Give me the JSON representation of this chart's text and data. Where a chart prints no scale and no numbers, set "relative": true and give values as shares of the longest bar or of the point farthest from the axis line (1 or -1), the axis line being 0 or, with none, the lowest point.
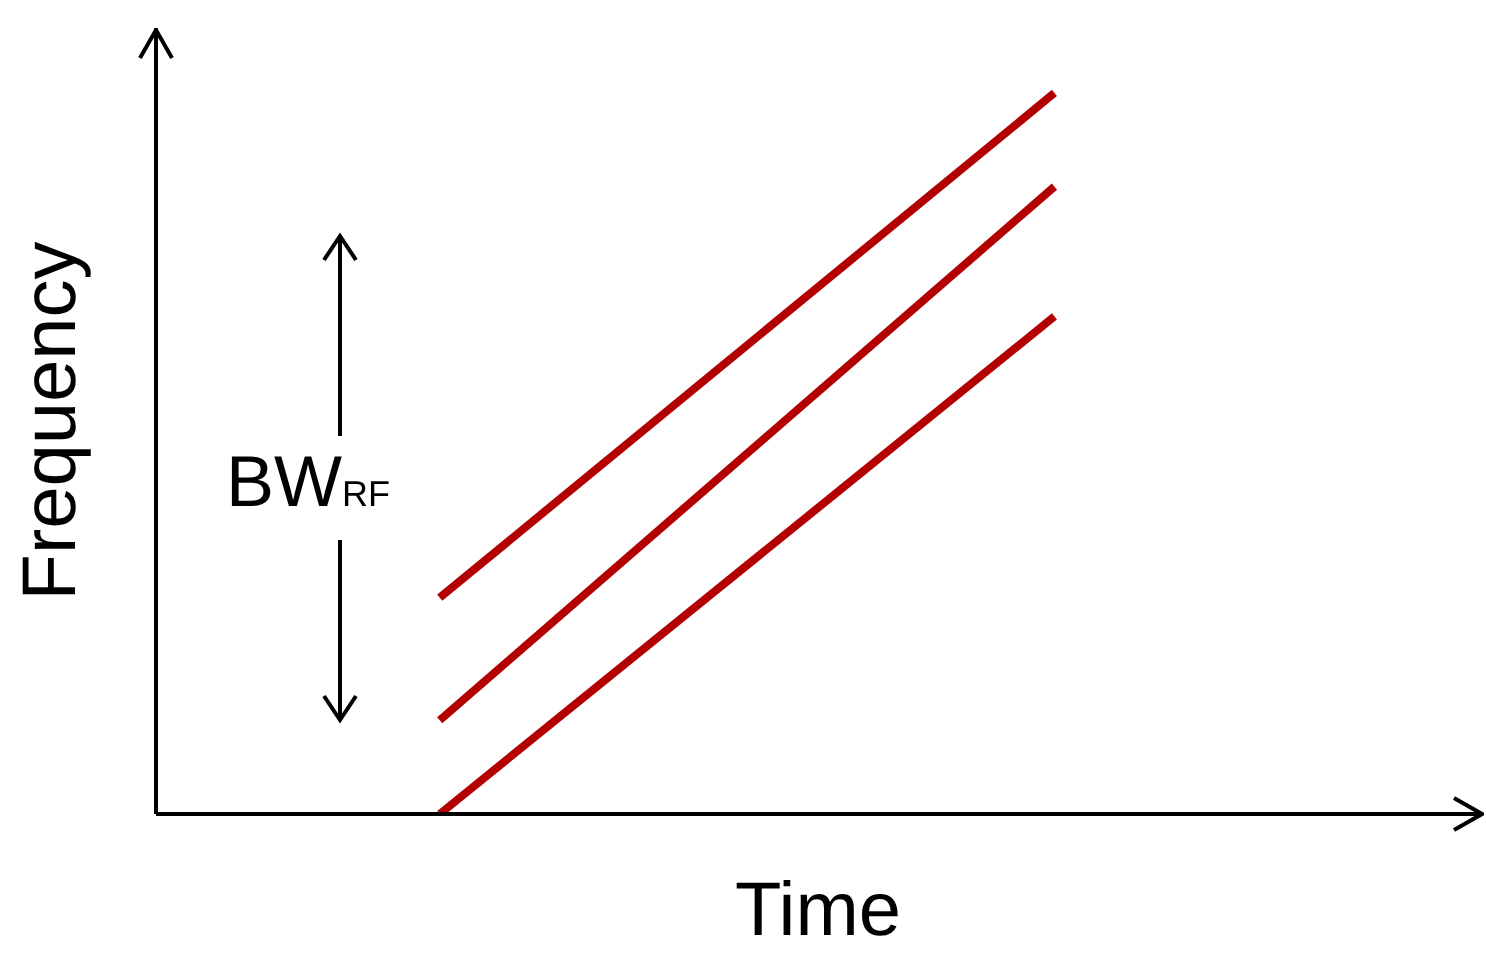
{
  "chart_data": {
    "type": "line",
    "relative": true,
    "xlabel": "Time",
    "ylabel": "Frequency",
    "legend": false,
    "grid": false,
    "marker": "none",
    "line_style": "solid",
    "annotations": [
      "BW$_{RF}$"
    ],
    "categories": [
      null,
      null,
      null,
      null,
      null,
      null,
      null,
      null,
      null,
      null,
      null,
      null,
      null,
      null,
      null,
      null,
      null,
      null,
      null,
      null,
      null,
      null,
      null,
      null,
      null,
      null,
      null,
      null,
      null
    ],
    "series": [
      {
        "color": "#b30000",
        "values": [
          null,
          null,
          null,
          null,
          null,
          null,
          0.3,
          null,
          null,
          null,
          null,
          null,
          null,
          null,
          null,
          null,
          null,
          null,
          null,
          1,
          null,
          null,
          null,
          null,
          null,
          null,
          null,
          null,
          null
        ]
      },
      {
        "color": "#b30000",
        "values": [
          null,
          null,
          null,
          null,
          null,
          null,
          0.13,
          null,
          null,
          null,
          null,
          null,
          null,
          null,
          null,
          null,
          null,
          null,
          null,
          0.87,
          null,
          null,
          null,
          null,
          null,
          null,
          null,
          null,
          null
        ]
      },
      {
        "color": "#b30000",
        "values": [
          null,
          null,
          null,
          null,
          null,
          null,
          0,
          null,
          null,
          null,
          null,
          null,
          null,
          null,
          null,
          null,
          null,
          null,
          null,
          0.69,
          null,
          null,
          null,
          null,
          null,
          null,
          null,
          null,
          null
        ]
      }
    ]
  }
}
